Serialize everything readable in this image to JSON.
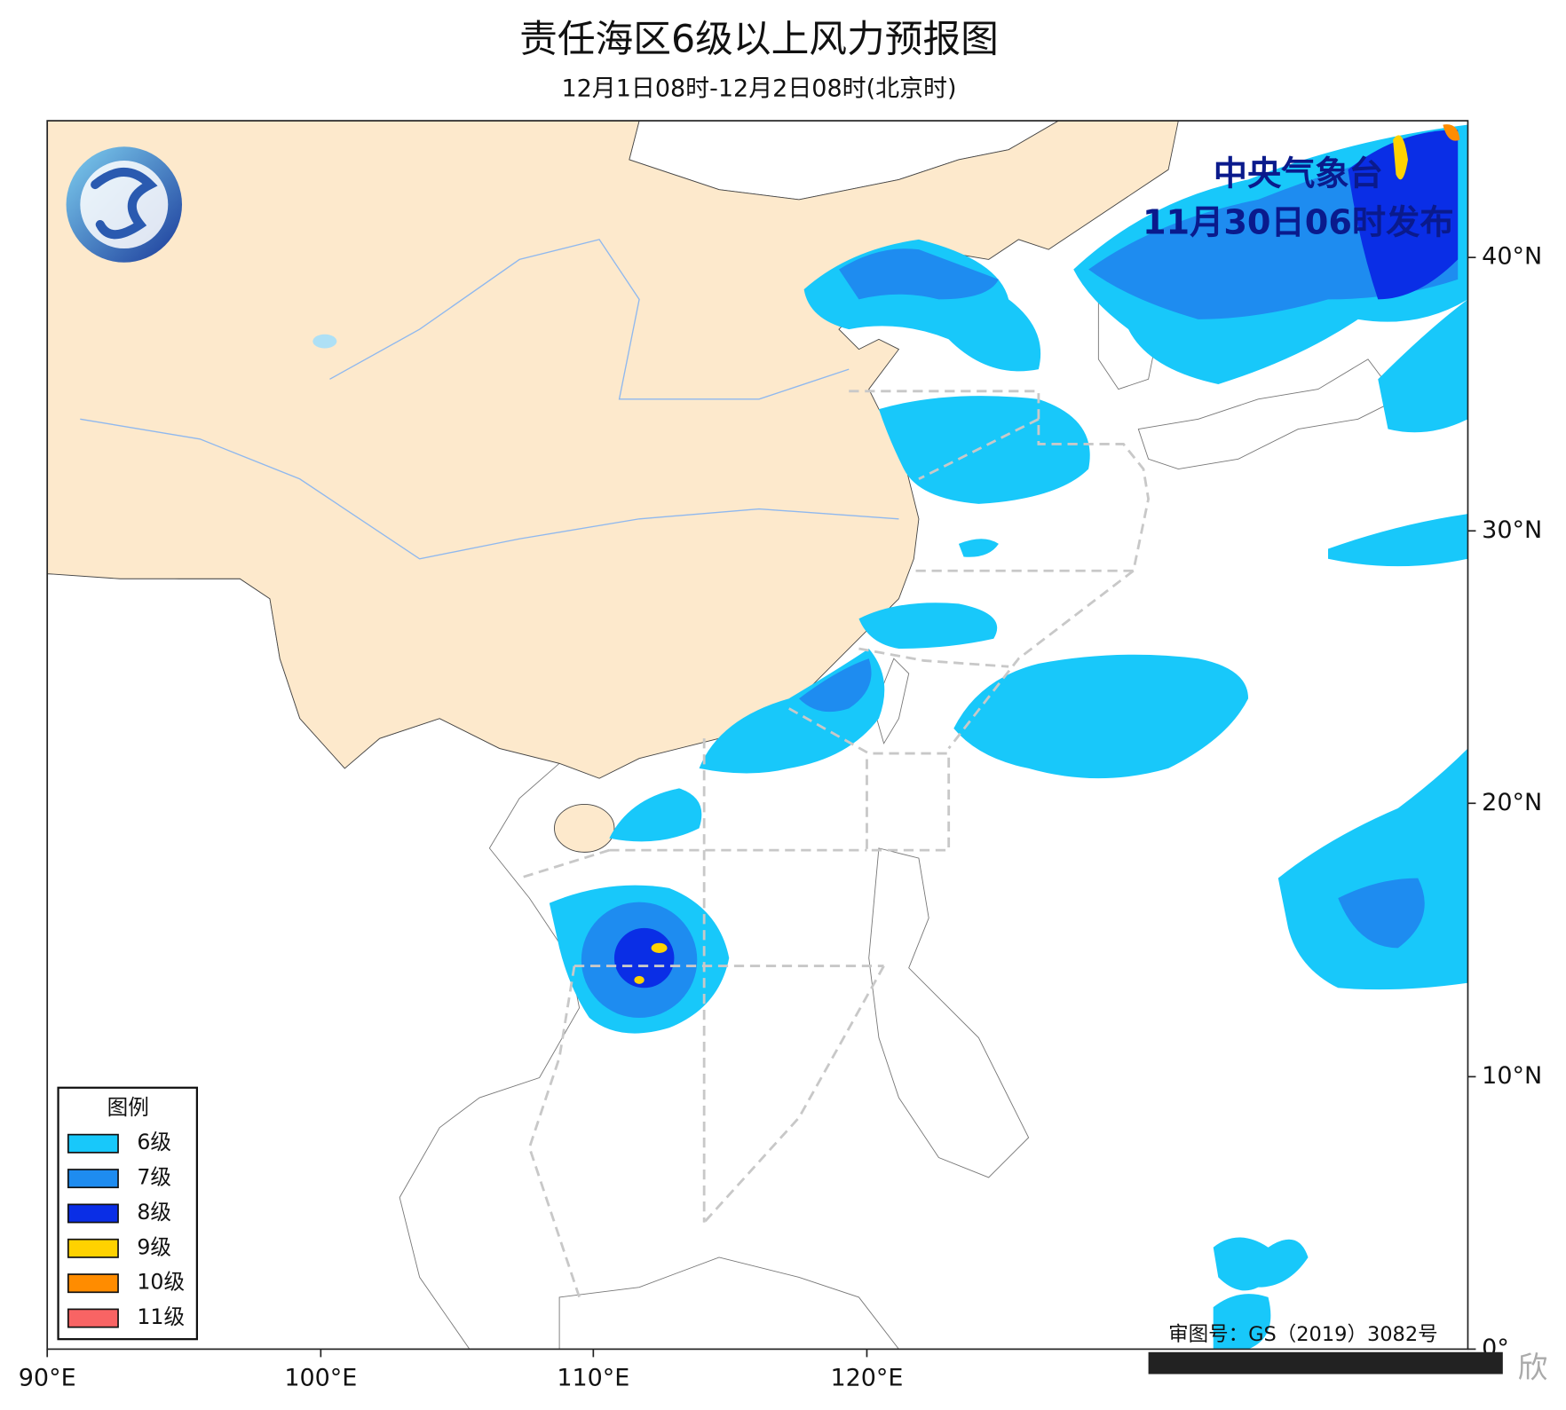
{
  "header": {
    "title": "责任海区6级以上风力预报图",
    "subtitle": "12月1日08时-12月2日08时(北京时)"
  },
  "issuer": {
    "lines": [
      "中央气象台",
      "11月30日06时发布"
    ]
  },
  "legend": {
    "title": "图例",
    "items": [
      {
        "label": "6级",
        "color": "#18c8fa"
      },
      {
        "label": "7级",
        "color": "#1e8cf0"
      },
      {
        "label": "8级",
        "color": "#0a2ee6"
      },
      {
        "label": "9级",
        "color": "#ffd200"
      },
      {
        "label": "10级",
        "color": "#ff8c00"
      },
      {
        "label": "11级",
        "color": "#f86464"
      }
    ]
  },
  "axes": {
    "lon_labels": [
      "90°E",
      "100°E",
      "110°E",
      "120°E"
    ],
    "lat_labels": [
      "40°N",
      "30°N",
      "20°N",
      "10°N",
      "0°"
    ]
  },
  "approval": "审图号：GS（2019）3082号",
  "watermark": "欣"
}
